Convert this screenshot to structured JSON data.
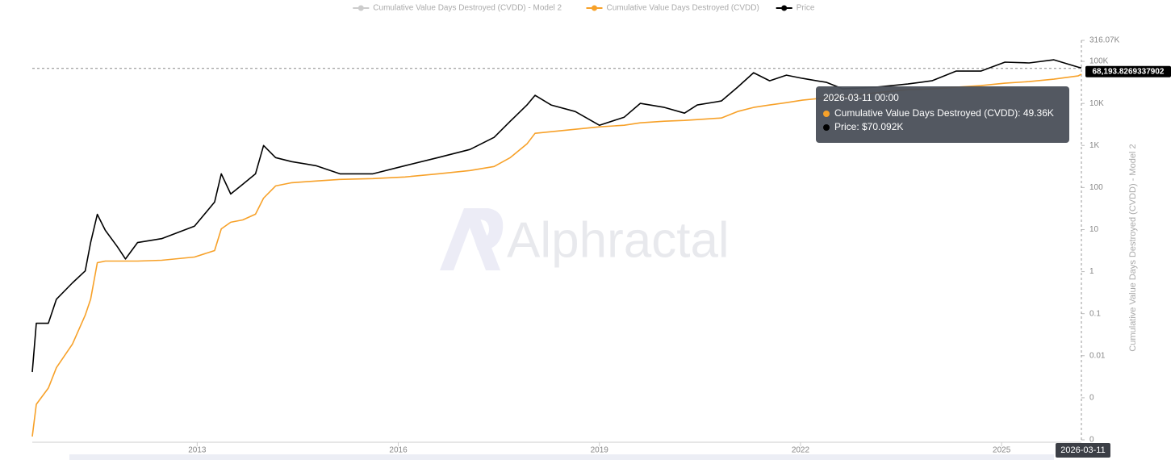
{
  "chart_data": {
    "type": "line",
    "y_scale": "log",
    "y_axis_title": "Cumulative Value Days Destroyed (CVDD) - Model 2",
    "watermark": "Alphractal",
    "x": [
      2010.54,
      2010.6,
      2010.78,
      2010.9,
      2011.14,
      2011.33,
      2011.41,
      2011.51,
      2011.63,
      2011.81,
      2011.93,
      2012.11,
      2012.47,
      2012.96,
      2013.26,
      2013.36,
      2013.5,
      2013.68,
      2013.87,
      2013.99,
      2014.17,
      2014.41,
      2014.77,
      2015.13,
      2015.62,
      2016.1,
      2016.59,
      2017.07,
      2017.43,
      2017.67,
      2017.92,
      2018.04,
      2018.28,
      2018.64,
      2019.0,
      2019.37,
      2019.61,
      2019.97,
      2020.27,
      2020.46,
      2020.82,
      2021.06,
      2021.3,
      2021.54,
      2021.79,
      2022.03,
      2022.39,
      2022.63,
      2023.12,
      2023.6,
      2023.96,
      2024.32,
      2024.69,
      2025.05,
      2025.41,
      2025.78,
      2026.14,
      2026.19
    ],
    "xlim": [
      2010.54,
      2026.19
    ],
    "xticks": [
      2013,
      2016,
      2019,
      2022,
      2025
    ],
    "ylim": [
      0.0001,
      316070
    ],
    "yticks": [
      {
        "value": 316070,
        "label": "316.07K"
      },
      {
        "value": 100000,
        "label": "100K"
      },
      {
        "value": 10000,
        "label": "10K"
      },
      {
        "value": 1000,
        "label": "1K"
      },
      100,
      10,
      1,
      0.1,
      0.01,
      {
        "value": 0.001,
        "label": "0"
      },
      {
        "value": 0.0001,
        "label": "0"
      }
    ],
    "series": [
      {
        "name": "Cumulative Value Days Destroyed (CVDD) - Model 2",
        "color": "#bbbbbb",
        "visible": false
      },
      {
        "name": "Cumulative Value Days Destroyed (CVDD)",
        "color": "#f7a129",
        "values": [
          0.00012,
          0.0007,
          0.0017,
          0.0052,
          0.019,
          0.092,
          0.22,
          1.63,
          1.78,
          1.78,
          1.78,
          1.78,
          1.86,
          2.22,
          3.16,
          10.4,
          14.9,
          17.0,
          23.2,
          56,
          109,
          130,
          143,
          156,
          163,
          178,
          212,
          254,
          316,
          515,
          1092,
          1941,
          2123,
          2427,
          2770,
          3027,
          3452,
          3776,
          3945,
          4121,
          4508,
          6427,
          8017,
          9162,
          10450,
          11940,
          13650,
          14260,
          17780,
          21230,
          22180,
          24270,
          26480,
          30270,
          33040,
          37760,
          45080,
          49360
        ]
      },
      {
        "name": "Price",
        "color": "#000000",
        "values": [
          0.0041,
          0.059,
          0.059,
          0.22,
          0.54,
          1.04,
          4.9,
          23,
          9.6,
          3.9,
          2.0,
          4.9,
          6.1,
          12,
          45,
          212,
          70,
          119,
          212,
          1000,
          515,
          412,
          330,
          212,
          212,
          330,
          515,
          802,
          1556,
          3776,
          9162,
          15560,
          9162,
          6427,
          3027,
          4710,
          10000,
          8017,
          5877,
          9162,
          11430,
          24250,
          53800,
          34500,
          47100,
          39400,
          31600,
          22200,
          24250,
          29000,
          34500,
          58800,
          58800,
          95700,
          91600,
          109000,
          73300,
          70092
        ]
      }
    ],
    "price_line": {
      "value": 68193.8269337902,
      "label": "68,193.8269337902"
    },
    "crosshair": {
      "x": 2026.19,
      "label": "2026-03-11"
    },
    "tooltip": {
      "title": "2026-03-11 00:00",
      "lines": [
        "Cumulative Value Days Destroyed (CVDD): 49.36K",
        "Price: $70.092K"
      ]
    }
  }
}
